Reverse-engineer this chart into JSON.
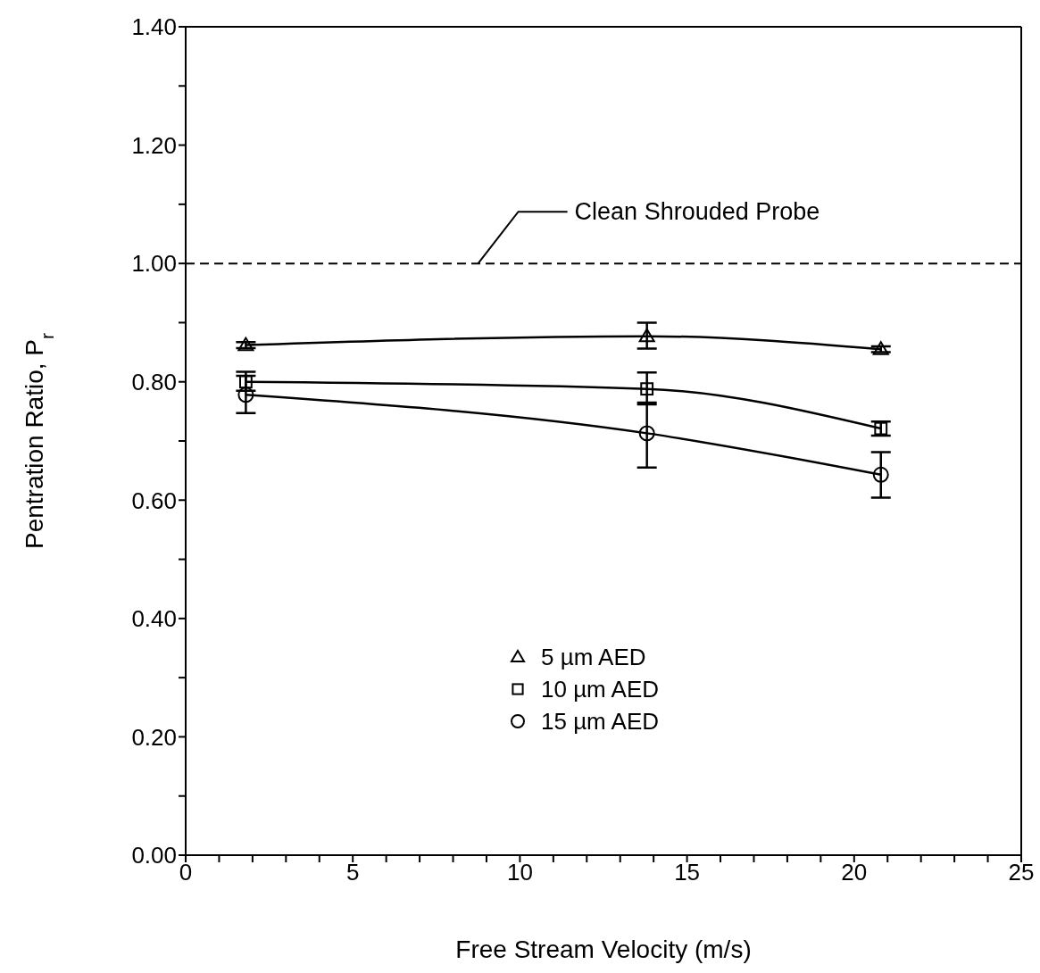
{
  "chart_data": {
    "type": "line",
    "xlabel": "Free Stream Velocity (m/s)",
    "ylabel": "Pentration Ratio, P$_{r}$",
    "xlim": [
      0,
      25
    ],
    "xticks": [
      0,
      {
        "value": 1,
        "label": null
      },
      {
        "value": 2,
        "label": null
      },
      {
        "value": 3,
        "label": null
      },
      {
        "value": 4,
        "label": null
      },
      5,
      {
        "value": 6,
        "label": null
      },
      {
        "value": 7,
        "label": null
      },
      {
        "value": 8,
        "label": null
      },
      {
        "value": 9,
        "label": null
      },
      10,
      {
        "value": 11,
        "label": null
      },
      {
        "value": 12,
        "label": null
      },
      {
        "value": 13,
        "label": null
      },
      {
        "value": 14,
        "label": null
      },
      15,
      {
        "value": 16,
        "label": null
      },
      {
        "value": 17,
        "label": null
      },
      {
        "value": 18,
        "label": null
      },
      {
        "value": 19,
        "label": null
      },
      20,
      {
        "value": 21,
        "label": null
      },
      {
        "value": 22,
        "label": null
      },
      {
        "value": 23,
        "label": null
      },
      {
        "value": 24,
        "label": null
      },
      25
    ],
    "ylim": [
      0,
      1.4
    ],
    "yticks": [
      {
        "value": 0,
        "label": "0.00"
      },
      {
        "value": 0.1,
        "label": null
      },
      {
        "value": 0.2,
        "label": "0.20"
      },
      {
        "value": 0.3,
        "label": null
      },
      {
        "value": 0.4,
        "label": "0.40"
      },
      {
        "value": 0.5,
        "label": null
      },
      {
        "value": 0.6,
        "label": "0.60"
      },
      {
        "value": 0.7,
        "label": null
      },
      {
        "value": 0.8,
        "label": "0.80"
      },
      {
        "value": 0.9,
        "label": null
      },
      {
        "value": 1.0,
        "label": "1.00"
      },
      {
        "value": 1.1,
        "label": null
      },
      {
        "value": 1.2,
        "label": "1.20"
      },
      {
        "value": 1.3,
        "label": null
      },
      {
        "value": 1.4,
        "label": "1.40"
      }
    ],
    "x": [
      1.8,
      13.8,
      20.8
    ],
    "series": [
      {
        "name": "5 µm AED",
        "color": "#000000",
        "marker": "triangle",
        "values": [
          0.862,
          0.877,
          0.855
        ],
        "errors": [
          [
            0.857,
            0.867
          ],
          [
            0.856,
            0.9
          ],
          [
            0.85,
            0.86
          ]
        ]
      },
      {
        "name": "10 µm AED",
        "color": "#000000",
        "marker": "square",
        "values": [
          0.8,
          0.788,
          0.721
        ],
        "errors": [
          [
            0.785,
            0.817
          ],
          [
            0.762,
            0.816
          ],
          [
            0.709,
            0.733
          ]
        ]
      },
      {
        "name": "15 µm AED",
        "color": "#000000",
        "marker": "circle",
        "values": [
          0.778,
          0.713,
          0.643
        ],
        "errors": [
          [
            0.747,
            0.81
          ],
          [
            0.655,
            0.765
          ],
          [
            0.604,
            0.681
          ]
        ]
      }
    ],
    "ref_lines": [
      {
        "axis": "y",
        "value": 1.0,
        "label": "Clean Shrouded Probe",
        "color": "#000000",
        "line_style": "dashed"
      }
    ],
    "legend": "bottom",
    "line_style": "solid"
  }
}
